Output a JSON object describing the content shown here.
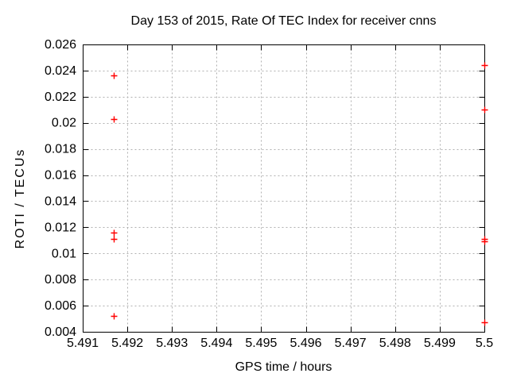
{
  "chart_data": {
    "type": "scatter",
    "title": "Day 153 of 2015, Rate Of TEC Index for receiver cnns",
    "xlabel": "GPS time / hours",
    "ylabel": "ROTI / TECUs",
    "xlim": [
      5.491,
      5.5
    ],
    "ylim": [
      0.004,
      0.026
    ],
    "grid": "dashed",
    "legend": "none",
    "xticks": {
      "values": [
        5.491,
        5.492,
        5.493,
        5.494,
        5.495,
        5.496,
        5.497,
        5.498,
        5.499,
        5.5
      ],
      "labels": [
        "5.491",
        "5.492",
        "5.493",
        "5.494",
        "5.495",
        "5.496",
        "5.497",
        "5.498",
        "5.499",
        "5.5"
      ]
    },
    "yticks": {
      "values": [
        0.004,
        0.006,
        0.008,
        0.01,
        0.012,
        0.014,
        0.016,
        0.018,
        0.02,
        0.022,
        0.024,
        0.026
      ],
      "labels": [
        "0.004",
        "0.006",
        "0.008",
        "0.01",
        "0.012",
        "0.014",
        "0.016",
        "0.018",
        "0.02",
        "0.022",
        "0.024",
        "0.026"
      ]
    },
    "series": [
      {
        "name": "ROTI",
        "marker": "plus",
        "color": "#ff0000",
        "points": [
          {
            "x": 5.4917,
            "y": 0.0236
          },
          {
            "x": 5.4917,
            "y": 0.0203
          },
          {
            "x": 5.4917,
            "y": 0.0116
          },
          {
            "x": 5.4917,
            "y": 0.0111
          },
          {
            "x": 5.4917,
            "y": 0.0052
          },
          {
            "x": 5.5,
            "y": 0.0244
          },
          {
            "x": 5.5,
            "y": 0.021
          },
          {
            "x": 5.5,
            "y": 0.0111
          },
          {
            "x": 5.5,
            "y": 0.0109
          },
          {
            "x": 5.5,
            "y": 0.0047
          }
        ]
      }
    ],
    "colors": {
      "marker": "#ff0000",
      "grid": "#b0b0b0",
      "frame": "#000000",
      "background": "#ffffff",
      "text": "#000000"
    }
  }
}
